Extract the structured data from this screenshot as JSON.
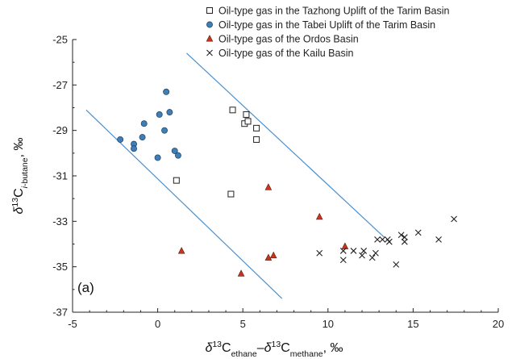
{
  "chart_data": {
    "type": "scatter",
    "panel_label": "(a)",
    "x_axis": {
      "title_parts": [
        "δ",
        "13",
        "C",
        "ethane",
        "–",
        "δ",
        "13",
        "C",
        "methane",
        ", ‰"
      ],
      "range": [
        -5,
        20
      ],
      "ticks": [
        -5,
        0,
        5,
        10,
        15,
        20
      ],
      "tick_labels": [
        "-5",
        "0",
        "5",
        "10",
        "15",
        "20"
      ]
    },
    "y_axis": {
      "title_parts": [
        "δ",
        "13",
        "C",
        "i",
        "-butane",
        ", ‰"
      ],
      "range": [
        -37,
        -25
      ],
      "ticks": [
        -37,
        -35,
        -33,
        -31,
        -29,
        -27,
        -25
      ],
      "tick_labels": [
        "-37",
        "-35",
        "-33",
        "-31",
        "-29",
        "-27",
        "-25"
      ]
    },
    "grid": false,
    "legend_placement": "top-right",
    "series": [
      {
        "name": "Oil-type gas in the Tazhong Uplift of the Tarim Basin",
        "marker": "open-square",
        "color": "#222222",
        "points": [
          [
            4.4,
            -28.1
          ],
          [
            5.1,
            -28.7
          ],
          [
            5.2,
            -28.3
          ],
          [
            5.3,
            -28.6
          ],
          [
            5.8,
            -28.9
          ],
          [
            5.8,
            -29.4
          ],
          [
            1.1,
            -31.2
          ],
          [
            4.3,
            -31.8
          ]
        ]
      },
      {
        "name": "Oil-type gas in the Tabei Uplift of the Tarim Basin",
        "marker": "filled-circle",
        "color": "#3f7fb7",
        "points": [
          [
            -2.2,
            -29.4
          ],
          [
            -1.4,
            -29.6
          ],
          [
            -1.4,
            -29.8
          ],
          [
            -0.9,
            -29.3
          ],
          [
            -0.8,
            -28.7
          ],
          [
            0.1,
            -28.3
          ],
          [
            0.5,
            -27.3
          ],
          [
            0.7,
            -28.2
          ],
          [
            0.4,
            -29.0
          ],
          [
            0.0,
            -30.2
          ],
          [
            1.0,
            -29.9
          ],
          [
            1.2,
            -30.1
          ]
        ]
      },
      {
        "name": "Oil-type gas of the Ordos Basin",
        "marker": "filled-triangle",
        "color": "#c8341c",
        "points": [
          [
            1.4,
            -34.3
          ],
          [
            4.9,
            -35.3
          ],
          [
            6.5,
            -31.5
          ],
          [
            6.5,
            -34.6
          ],
          [
            6.8,
            -34.5
          ],
          [
            9.5,
            -32.8
          ],
          [
            11.0,
            -34.1
          ]
        ]
      },
      {
        "name": "Oil-type gas of the Kailu Basin",
        "marker": "cross",
        "color": "#222222",
        "points": [
          [
            9.5,
            -34.4
          ],
          [
            10.9,
            -34.7
          ],
          [
            10.9,
            -34.3
          ],
          [
            11.5,
            -34.3
          ],
          [
            12.0,
            -34.5
          ],
          [
            12.1,
            -34.3
          ],
          [
            12.6,
            -34.6
          ],
          [
            12.8,
            -34.4
          ],
          [
            12.9,
            -33.8
          ],
          [
            13.2,
            -33.8
          ],
          [
            13.5,
            -33.8
          ],
          [
            13.6,
            -33.9
          ],
          [
            14.0,
            -34.9
          ],
          [
            14.3,
            -33.6
          ],
          [
            14.5,
            -33.7
          ],
          [
            14.5,
            -33.9
          ],
          [
            15.3,
            -33.5
          ],
          [
            16.5,
            -33.8
          ],
          [
            17.4,
            -32.9
          ]
        ]
      }
    ],
    "reference_lines": [
      {
        "name": "",
        "color": "#4a90d0",
        "from": [
          -4.2,
          -28.1
        ],
        "to": [
          7.3,
          -36.4
        ]
      },
      {
        "name": "",
        "color": "#4a90d0",
        "from": [
          1.7,
          -25.6
        ],
        "to": [
          13.3,
          -33.7
        ]
      }
    ]
  }
}
